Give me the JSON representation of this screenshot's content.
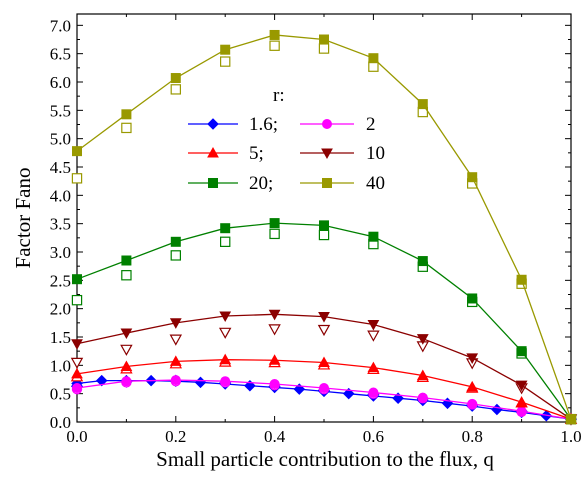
{
  "chart_data": {
    "type": "line",
    "xlabel": "Small particle contribution to the flux, q",
    "ylabel": "Factor Fano",
    "xlim": [
      0,
      1
    ],
    "ylim": [
      0,
      7.2
    ],
    "xticks": [
      "0.0",
      "0.2",
      "0.4",
      "0.6",
      "0.8",
      "1.0"
    ],
    "xtick_values": [
      0,
      0.2,
      0.4,
      0.6,
      0.8,
      1.0
    ],
    "yticks": [
      "0.0",
      "0.5",
      "1.0",
      "1.5",
      "2.0",
      "2.5",
      "3.0",
      "3.5",
      "4.0",
      "4.5",
      "5.0",
      "5.5",
      "6.0",
      "6.5",
      "7.0"
    ],
    "ytick_values": [
      0,
      0.5,
      1.0,
      1.5,
      2.0,
      2.5,
      3.0,
      3.5,
      4.0,
      4.5,
      5.0,
      5.5,
      6.0,
      6.5,
      7.0
    ],
    "legend_title": "r:",
    "legend_entries": [
      {
        "label": "1.6;",
        "series": 0
      },
      {
        "label": "2",
        "series": 1
      },
      {
        "label": "5;",
        "series": 2
      },
      {
        "label": "10",
        "series": 3
      },
      {
        "label": "20;",
        "series": 4
      },
      {
        "label": "40",
        "series": 5
      }
    ],
    "series": [
      {
        "name": "1.6",
        "color": "#0000ff",
        "marker": "diamond",
        "x": [
          0,
          0.05,
          0.1,
          0.15,
          0.2,
          0.25,
          0.3,
          0.35,
          0.4,
          0.45,
          0.5,
          0.55,
          0.6,
          0.65,
          0.7,
          0.75,
          0.8,
          0.85,
          0.9,
          0.95,
          1.0
        ],
        "y": [
          0.68,
          0.73,
          0.73,
          0.73,
          0.72,
          0.7,
          0.67,
          0.64,
          0.61,
          0.58,
          0.54,
          0.5,
          0.46,
          0.42,
          0.38,
          0.33,
          0.28,
          0.22,
          0.17,
          0.11,
          0.05
        ],
        "open": {
          "x": [
            0,
            0.1,
            0.2,
            0.3,
            0.4,
            0.5,
            0.6,
            0.7,
            0.8,
            0.9,
            1.0
          ],
          "y": [
            0.63,
            0.71,
            0.73,
            0.69,
            0.63,
            0.56,
            0.49,
            0.41,
            0.3,
            0.19,
            0.05
          ]
        }
      },
      {
        "name": "2",
        "color": "#ff00ff",
        "marker": "circle",
        "x": [
          0,
          0.1,
          0.2,
          0.3,
          0.4,
          0.5,
          0.6,
          0.7,
          0.8,
          0.9,
          1.0
        ],
        "y": [
          0.6,
          0.72,
          0.74,
          0.72,
          0.67,
          0.6,
          0.52,
          0.43,
          0.32,
          0.19,
          0.05
        ],
        "open": {
          "x": [
            0,
            0.1,
            0.2,
            0.3,
            0.4,
            0.5,
            0.6,
            0.7,
            0.8,
            0.9,
            1.0
          ],
          "y": [
            0.58,
            0.7,
            0.72,
            0.7,
            0.65,
            0.58,
            0.5,
            0.42,
            0.31,
            0.18,
            0.05
          ]
        }
      },
      {
        "name": "5",
        "color": "#ff0000",
        "marker": "triangle-up",
        "x": [
          0,
          0.1,
          0.2,
          0.3,
          0.4,
          0.5,
          0.6,
          0.7,
          0.8,
          0.9,
          1.0
        ],
        "y": [
          0.85,
          0.98,
          1.07,
          1.1,
          1.09,
          1.05,
          0.96,
          0.82,
          0.62,
          0.35,
          0.05
        ],
        "open": {
          "x": [
            0,
            0.1,
            0.2,
            0.3,
            0.4,
            0.5,
            0.6,
            0.7,
            0.8,
            0.9,
            1.0
          ],
          "y": [
            0.8,
            0.94,
            1.03,
            1.06,
            1.05,
            1.01,
            0.93,
            0.79,
            0.6,
            0.34,
            0.05
          ]
        }
      },
      {
        "name": "10",
        "color": "#8b0000",
        "marker": "triangle-down",
        "x": [
          0,
          0.1,
          0.2,
          0.3,
          0.4,
          0.5,
          0.6,
          0.7,
          0.8,
          0.9,
          1.0
        ],
        "y": [
          1.38,
          1.57,
          1.75,
          1.87,
          1.9,
          1.86,
          1.72,
          1.47,
          1.13,
          0.65,
          0.05
        ],
        "open": {
          "x": [
            0,
            0.1,
            0.2,
            0.3,
            0.4,
            0.5,
            0.6,
            0.7,
            0.8,
            0.9,
            1.0
          ],
          "y": [
            1.05,
            1.28,
            1.46,
            1.58,
            1.64,
            1.63,
            1.53,
            1.34,
            1.04,
            0.6,
            0.05
          ]
        }
      },
      {
        "name": "20",
        "color": "#008000",
        "marker": "square",
        "x": [
          0,
          0.1,
          0.2,
          0.3,
          0.4,
          0.5,
          0.6,
          0.7,
          0.8,
          0.9,
          1.0
        ],
        "y": [
          2.52,
          2.85,
          3.18,
          3.42,
          3.51,
          3.47,
          3.27,
          2.84,
          2.18,
          1.25,
          0.05
        ],
        "open": {
          "x": [
            0,
            0.1,
            0.2,
            0.3,
            0.4,
            0.5,
            0.6,
            0.7,
            0.8,
            0.9,
            1.0
          ],
          "y": [
            2.15,
            2.59,
            2.94,
            3.18,
            3.32,
            3.3,
            3.14,
            2.74,
            2.12,
            1.21,
            0.05
          ]
        }
      },
      {
        "name": "40",
        "color": "#999900",
        "marker": "square",
        "x": [
          0,
          0.1,
          0.2,
          0.3,
          0.4,
          0.5,
          0.6,
          0.7,
          0.8,
          0.9,
          1.0
        ],
        "y": [
          4.78,
          5.43,
          6.07,
          6.57,
          6.83,
          6.75,
          6.42,
          5.61,
          4.32,
          2.51,
          0.05
        ],
        "open": {
          "x": [
            0,
            0.1,
            0.2,
            0.3,
            0.4,
            0.5,
            0.6,
            0.7,
            0.8,
            0.9,
            1.0
          ],
          "y": [
            4.3,
            5.19,
            5.87,
            6.36,
            6.64,
            6.59,
            6.27,
            5.47,
            4.21,
            2.44,
            0.05
          ]
        }
      }
    ]
  }
}
